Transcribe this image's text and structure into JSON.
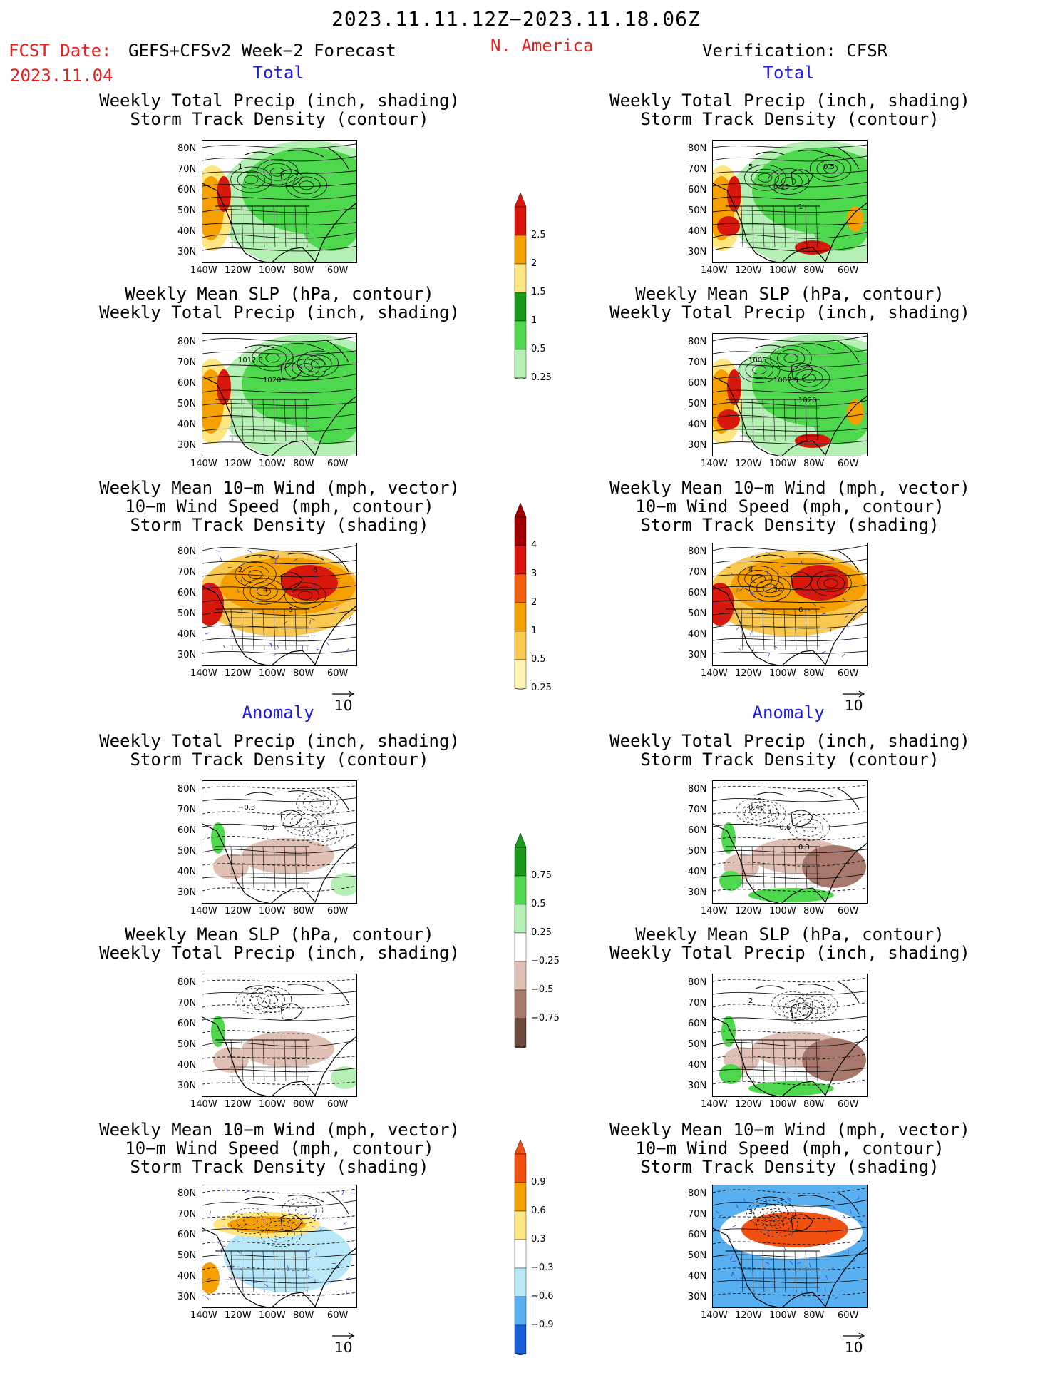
{
  "header": {
    "date_range": "2023.11.11.12Z−2023.11.18.06Z",
    "fcst_label": "FCST Date:",
    "fcst_source": "GEFS+CFSv2 Week−2 Forecast",
    "fcst_date": "2023.11.04",
    "region": "N. America",
    "verification": "Verification: CFSR"
  },
  "sections": {
    "total": "Total",
    "anomaly": "Anomaly"
  },
  "panel_titles": {
    "precip_storm": [
      "Weekly Total Precip (inch, shading)",
      "Storm Track Density (contour)"
    ],
    "slp_precip": [
      "Weekly Mean SLP (hPa, contour)",
      "Weekly Total Precip (inch, shading)"
    ],
    "wind_storm": [
      "Weekly Mean 10−m Wind (mph, vector)",
      "10−m Wind Speed (mph, contour)",
      "Storm Track Density (shading)"
    ]
  },
  "axes": {
    "lat_labels": [
      "80N",
      "70N",
      "60N",
      "50N",
      "40N",
      "30N"
    ],
    "lon_labels": [
      "140W",
      "120W",
      "100W",
      "80W",
      "60W"
    ]
  },
  "vector_reference": "10",
  "colorbars": {
    "precip_total": {
      "levels": [
        "2.5",
        "2",
        "1.5",
        "1",
        "0.5",
        "0.25"
      ],
      "colors": [
        "#d8180c",
        "#f5a000",
        "#ffe680",
        "#1a9a1a",
        "#4ed84e",
        "#b4f0b4"
      ]
    },
    "storm_total": {
      "levels": [
        "4",
        "3",
        "2",
        "1",
        "0.5",
        "0.25"
      ],
      "colors": [
        "#a00000",
        "#d8180c",
        "#f06010",
        "#f5a000",
        "#f8c850",
        "#fff4b0"
      ]
    },
    "precip_anom": {
      "levels": [
        "0.75",
        "0.5",
        "0.25",
        "−0.25",
        "−0.5",
        "−0.75"
      ],
      "colors": [
        "#1a9a1a",
        "#4ed84e",
        "#b4f0b4",
        "#ffffff",
        "#e0c0b4",
        "#a8786c",
        "#6e4a3e"
      ]
    },
    "storm_anom": {
      "levels": [
        "0.9",
        "0.6",
        "0.3",
        "−0.3",
        "−0.6",
        "−0.9"
      ],
      "colors": [
        "#f05010",
        "#f5a000",
        "#ffe680",
        "#ffffff",
        "#b8e8f8",
        "#58b0f0",
        "#1a60d8"
      ]
    }
  },
  "contour_labels": {
    "fcst_precip_total": [
      "1"
    ],
    "verif_precip_total": [
      "5",
      "0.25",
      "1",
      "0.5"
    ],
    "fcst_slp_total": [
      "1012.5",
      "1020"
    ],
    "verif_slp_total": [
      "1005",
      "1007.5",
      "1020"
    ],
    "fcst_wind_total": [
      "2",
      "4",
      "6",
      "6"
    ],
    "verif_wind_total": [
      "4",
      "14",
      "6"
    ],
    "fcst_precip_anom": [
      "−0.3",
      "0.3"
    ],
    "verif_precip_anom": [
      "0.45",
      "−0.6",
      "0.3"
    ],
    "verif_slp_anom": [
      "2"
    ],
    "verif_wind_anom": [
      "3"
    ]
  }
}
